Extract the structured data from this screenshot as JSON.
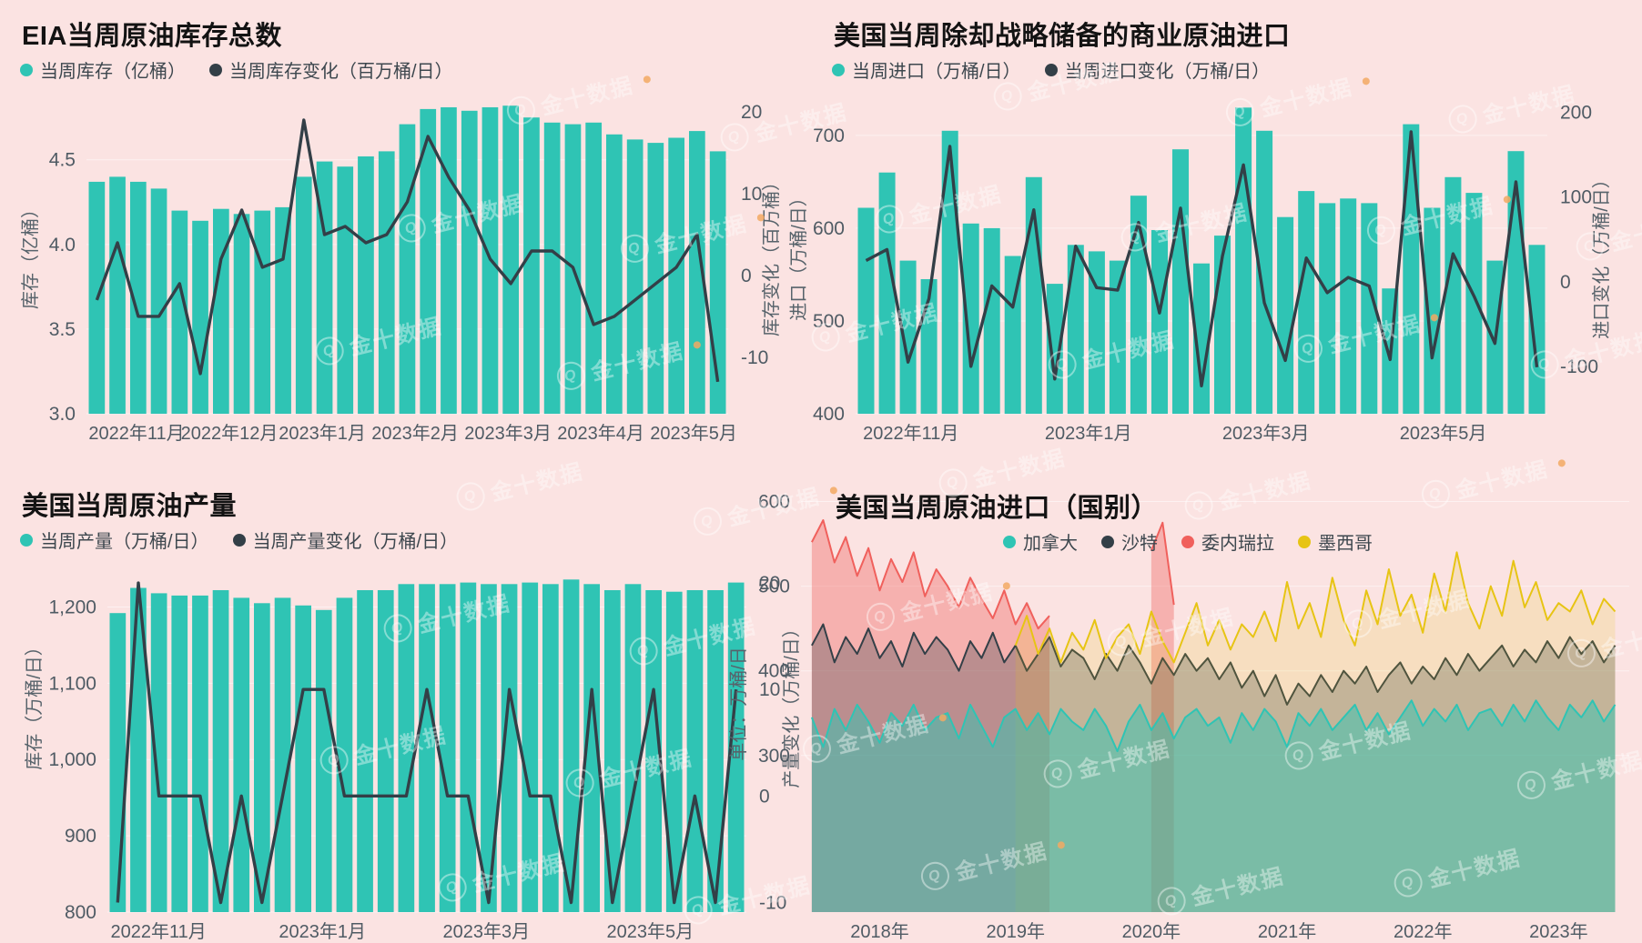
{
  "page": {
    "background": "#fbe3e2",
    "watermark_text": "金十数据"
  },
  "colors": {
    "background": "#fbe3e2",
    "bar_teal": "#2fc4b4",
    "line_dark": "#333f47",
    "red": "#f0605c",
    "yellow": "#e7c414",
    "axis_text": "#4f5b64",
    "axis_title": "#57636b",
    "title_text": "#131313",
    "legend_text": "#3d474e",
    "grid": "rgba(255,255,255,0.5)",
    "canada_fill": "rgba(47,196,180,0.5)",
    "saudi_fill": "rgba(51,63,71,0.30)",
    "venezuela_fill": "rgba(240,96,92,0.38)",
    "mexico_fill": "rgba(231,196,20,0.16)",
    "watermark": "rgba(255,255,255,0.42)",
    "watermark_dot": "#f2a963"
  },
  "chart_data": [
    {
      "id": "eia_inventory",
      "type": "bar+line",
      "title": "EIA当周原油库存总数",
      "legend": [
        {
          "label": "当周库存（亿桶）",
          "color": "#2fc4b4"
        },
        {
          "label": "当周库存变化（百万桶/日）",
          "color": "#333f47"
        }
      ],
      "y_left": {
        "label": "库存（亿桶）",
        "ticks": [
          "4.5",
          "4.0",
          "3.5",
          "3.0"
        ],
        "tick_values": [
          4.5,
          4.0,
          3.5,
          3.0
        ],
        "lim": [
          3.0,
          4.88
        ]
      },
      "y_right": {
        "label": "库存变化（百万桶）",
        "ticks": [
          "20",
          "10",
          "0",
          "-10"
        ],
        "tick_values": [
          20,
          10,
          0,
          -10
        ],
        "lim": [
          -16.9,
          22
        ]
      },
      "x_labels": [
        "2022年11月",
        "2022年12月",
        "2023年1月",
        "2023年2月",
        "2023年3月",
        "2023年4月",
        "2023年5月"
      ],
      "series": [
        {
          "name": "当周库存（亿桶）",
          "type": "bar",
          "values": [
            4.37,
            4.4,
            4.37,
            4.33,
            4.2,
            4.14,
            4.21,
            4.18,
            4.2,
            4.22,
            4.4,
            4.49,
            4.46,
            4.52,
            4.55,
            4.71,
            4.8,
            4.81,
            4.79,
            4.81,
            4.82,
            4.75,
            4.72,
            4.71,
            4.72,
            4.65,
            4.62,
            4.6,
            4.63,
            4.67,
            4.55
          ]
        },
        {
          "name": "当周库存变化（百万桶/日）",
          "type": "line",
          "values": [
            -3,
            4,
            -5,
            -5,
            -1,
            -12,
            2,
            8,
            1,
            2,
            19,
            5,
            6,
            4,
            5,
            9,
            17,
            12,
            8,
            2,
            -1,
            3,
            3,
            1,
            -6,
            -5,
            -3,
            -1,
            1,
            5,
            -13
          ]
        }
      ]
    },
    {
      "id": "us_commercial_imports",
      "type": "bar+line",
      "title": "美国当周除却战略储备的商业原油进口",
      "legend": [
        {
          "label": "当周进口（万桶/日）",
          "color": "#2fc4b4"
        },
        {
          "label": "当周进口变化（万桶/日）",
          "color": "#333f47"
        }
      ],
      "y_left": {
        "label": "进口（万桶/日）",
        "ticks": [
          "700",
          "600",
          "500",
          "400"
        ],
        "tick_values": [
          700,
          600,
          500,
          400
        ],
        "lim": [
          400,
          743
        ]
      },
      "y_right": {
        "label": "进口变化（万桶/日）",
        "ticks": [
          "200",
          "100",
          "0",
          "-100"
        ],
        "tick_values": [
          200,
          100,
          0,
          -100
        ],
        "lim": [
          -156,
          220
        ]
      },
      "x_labels": [
        "2022年11月",
        "2023年1月",
        "2023年3月",
        "2023年5月"
      ],
      "series": [
        {
          "name": "当周进口（万桶/日）",
          "type": "bar",
          "values": [
            622,
            660,
            565,
            545,
            705,
            605,
            600,
            570,
            655,
            540,
            582,
            575,
            565,
            635,
            598,
            685,
            562,
            592,
            730,
            705,
            612,
            640,
            627,
            632,
            627,
            535,
            712,
            622,
            655,
            638,
            565,
            683,
            582
          ]
        },
        {
          "name": "当周进口变化（万桶/日）",
          "type": "line",
          "values": [
            25,
            38,
            -95,
            -20,
            160,
            -100,
            -5,
            -30,
            85,
            -115,
            42,
            -7,
            -10,
            70,
            -37,
            87,
            -123,
            30,
            138,
            -25,
            -93,
            28,
            -13,
            5,
            -5,
            -92,
            177,
            -90,
            33,
            -17,
            -73,
            118,
            -101
          ]
        }
      ]
    },
    {
      "id": "us_production",
      "type": "bar+line",
      "title": "美国当周原油产量",
      "legend": [
        {
          "label": "当周产量（万桶/日）",
          "color": "#2fc4b4"
        },
        {
          "label": "当周产量变化（万桶/日）",
          "color": "#333f47"
        }
      ],
      "y_left": {
        "label": "库存（万桶/日）",
        "ticks": [
          "1,200",
          "1,100",
          "1,000",
          "900",
          "800"
        ],
        "tick_values": [
          1200,
          1100,
          1000,
          900,
          800
        ],
        "lim": [
          800,
          1346
        ]
      },
      "y_right": {
        "label": "产量变化（万桶/日）",
        "ticks": [
          "20",
          "10",
          "0",
          "-10"
        ],
        "tick_values": [
          20,
          10,
          0,
          -10
        ],
        "lim": [
          -10.9,
          28.2
        ]
      },
      "x_labels": [
        "2022年11月",
        "2023年1月",
        "2023年3月",
        "2023年5月"
      ],
      "series": [
        {
          "name": "当周产量（万桶/日）",
          "type": "bar",
          "values": [
            1192,
            1225,
            1218,
            1215,
            1215,
            1222,
            1212,
            1205,
            1212,
            1202,
            1196,
            1212,
            1222,
            1222,
            1230,
            1230,
            1230,
            1232,
            1230,
            1230,
            1232,
            1230,
            1236,
            1230,
            1222,
            1230,
            1222,
            1220,
            1222,
            1222,
            1232
          ]
        },
        {
          "name": "当周产量变化（万桶/日）",
          "type": "line",
          "values": [
            -10,
            20,
            0,
            0,
            0,
            -10,
            0,
            -10,
            0,
            10,
            10,
            0,
            0,
            0,
            0,
            10,
            0,
            0,
            -10,
            10,
            0,
            0,
            -10,
            10,
            -10,
            0,
            10,
            -10,
            0,
            -10,
            10
          ]
        }
      ]
    },
    {
      "id": "imports_by_country",
      "type": "area",
      "title": "美国当周原油进口（国别）",
      "legend": [
        {
          "label": "加拿大",
          "color": "#2fc4b4"
        },
        {
          "label": "沙特",
          "color": "#333f47"
        },
        {
          "label": "委内瑞拉",
          "color": "#f0605c"
        },
        {
          "label": "墨西哥",
          "color": "#e7c414"
        }
      ],
      "y_left": {
        "label": "单位：万桶/日",
        "ticks": [
          "600",
          "500",
          "400",
          "300"
        ],
        "tick_values": [
          600,
          500,
          400,
          300
        ],
        "lim": [
          115,
          607
        ]
      },
      "x": {
        "start": 2017.5,
        "step_years": 0.08333,
        "labels": [
          "2018年",
          "2019年",
          "2020年",
          "2021年",
          "2022年",
          "2023年"
        ],
        "label_years": [
          2018,
          2019,
          2020,
          2021,
          2022,
          2023
        ],
        "lim": [
          2017.42,
          2023.52
        ]
      },
      "series": [
        {
          "name": "加拿大",
          "values": [
            345,
            310,
            355,
            330,
            360,
            340,
            315,
            350,
            335,
            360,
            330,
            345,
            350,
            320,
            360,
            335,
            310,
            345,
            355,
            330,
            350,
            325,
            355,
            340,
            330,
            355,
            335,
            305,
            340,
            360,
            330,
            350,
            320,
            345,
            355,
            335,
            345,
            315,
            350,
            330,
            355,
            340,
            310,
            350,
            335,
            355,
            330,
            345,
            360,
            330,
            350,
            325,
            345,
            365,
            335,
            355,
            340,
            360,
            330,
            350,
            355,
            335,
            360,
            340,
            365,
            345,
            330,
            360,
            345,
            365,
            340,
            360
          ]
        },
        {
          "name": "沙特",
          "values": [
            430,
            455,
            410,
            440,
            420,
            450,
            415,
            435,
            405,
            445,
            420,
            440,
            425,
            400,
            435,
            415,
            445,
            410,
            430,
            400,
            420,
            440,
            405,
            425,
            415,
            390,
            420,
            400,
            430,
            410,
            385,
            415,
            395,
            420,
            400,
            415,
            390,
            410,
            380,
            400,
            370,
            395,
            360,
            385,
            370,
            395,
            375,
            400,
            385,
            405,
            375,
            395,
            410,
            385,
            405,
            390,
            415,
            395,
            420,
            400,
            415,
            430,
            405,
            425,
            410,
            435,
            415,
            440,
            420,
            435,
            410,
            430
          ]
        },
        {
          "name": "委内瑞拉",
          "values": [
            552,
            578,
            528,
            558,
            512,
            545,
            495,
            532,
            505,
            540,
            488,
            520,
            500,
            475,
            510,
            485,
            462,
            495,
            455,
            480,
            450,
            465,
            null,
            null,
            null,
            null,
            null,
            null,
            null,
            null,
            542,
            575,
            478,
            null,
            null,
            null,
            null,
            null,
            null,
            null,
            null,
            null,
            null,
            null,
            null,
            null,
            null,
            null,
            null,
            null,
            null,
            null,
            null,
            null,
            null,
            null,
            null,
            null,
            null,
            null,
            null,
            null,
            null,
            null,
            null,
            null,
            null,
            null,
            null,
            null,
            null,
            null
          ]
        },
        {
          "name": "墨西哥",
          "values": [
            null,
            null,
            null,
            null,
            null,
            null,
            null,
            null,
            null,
            null,
            null,
            null,
            null,
            null,
            null,
            null,
            null,
            null,
            430,
            465,
            420,
            450,
            410,
            445,
            425,
            460,
            415,
            440,
            455,
            420,
            470,
            435,
            410,
            445,
            480,
            430,
            460,
            425,
            455,
            440,
            470,
            435,
            505,
            450,
            480,
            440,
            510,
            460,
            430,
            495,
            455,
            520,
            465,
            490,
            445,
            515,
            470,
            540,
            480,
            450,
            500,
            465,
            530,
            475,
            505,
            460,
            480,
            470,
            495,
            455,
            485,
            470
          ]
        }
      ]
    }
  ]
}
